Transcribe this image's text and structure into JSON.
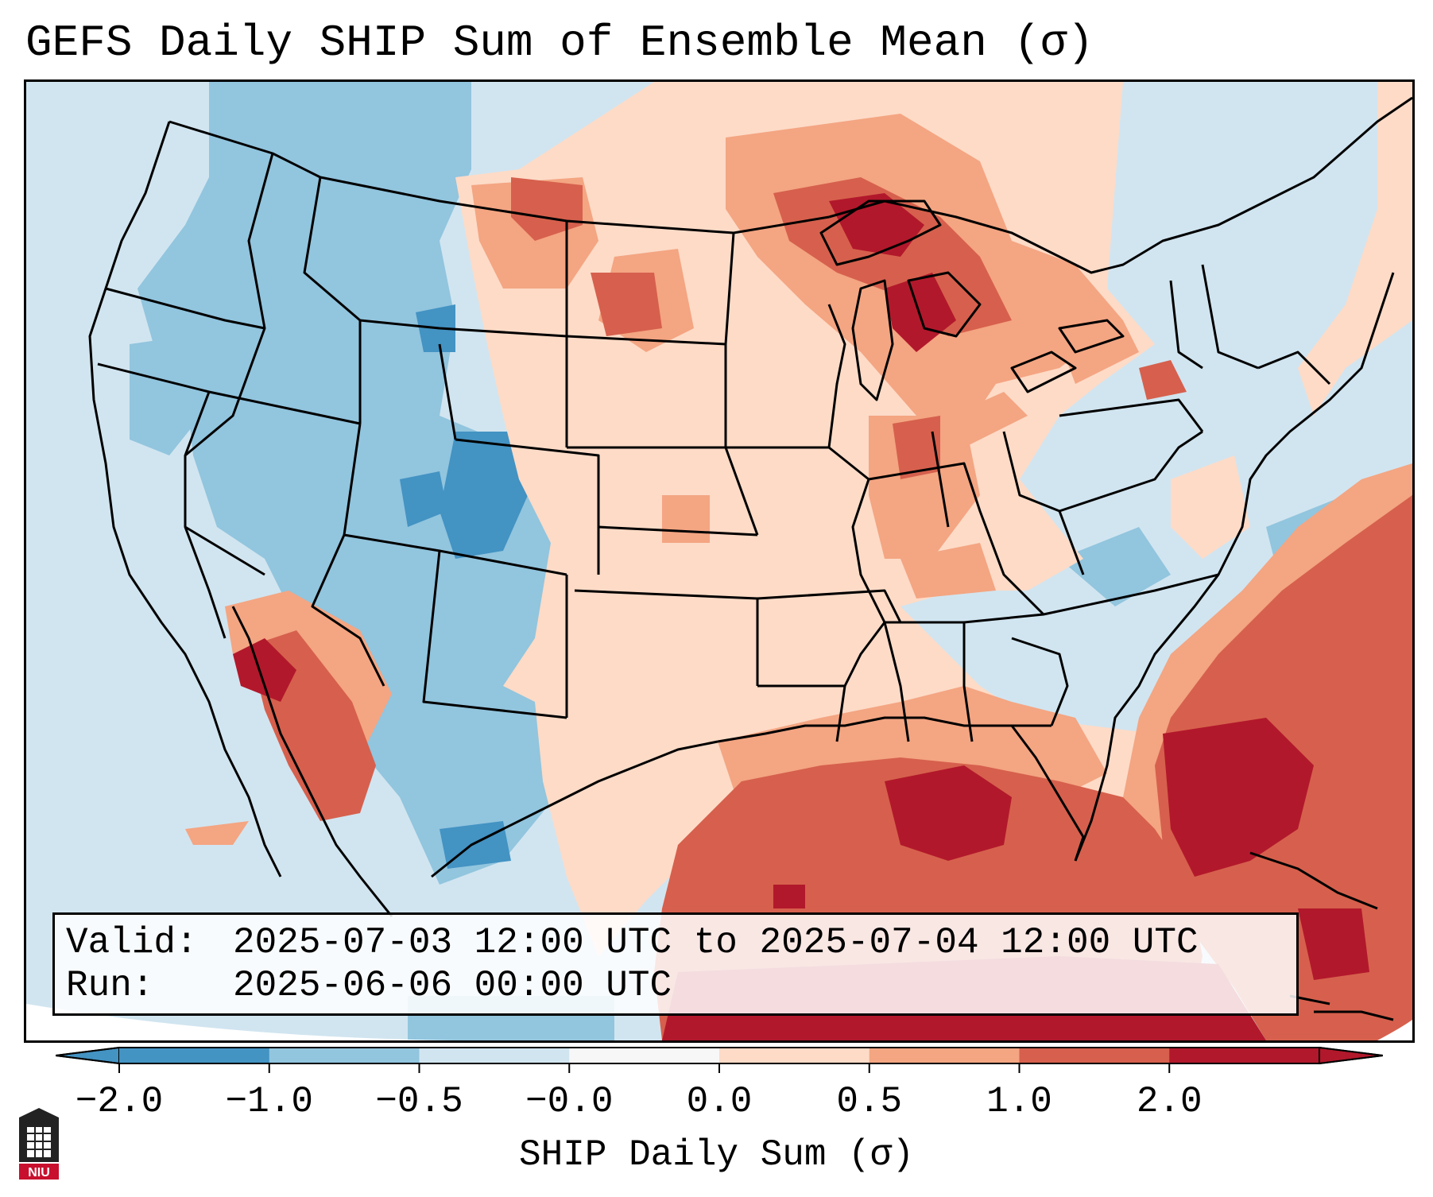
{
  "title": "GEFS Daily SHIP Sum of Ensemble Mean (σ)",
  "info": {
    "valid_label": "Valid:",
    "valid_value": "2025-07-03 12:00 UTC to 2025-07-04 12:00 UTC",
    "run_label": "Run:",
    "run_value": "2025-06-06 00:00 UTC"
  },
  "colorbar": {
    "label": "SHIP Daily Sum (σ)",
    "tick_labels": [
      "−2.0",
      "−1.0",
      "−0.5",
      "−0.0",
      "0.0",
      "0.5",
      "1.0",
      "2.0"
    ],
    "colors": [
      "#4393c3",
      "#92c5de",
      "#d1e5f0",
      "#f7f7f7",
      "#fddbc7",
      "#f4a582",
      "#d6604d",
      "#b2182b"
    ],
    "extend": "both"
  },
  "map": {
    "projection": "Lambert Conformal",
    "region": "Contiguous United States",
    "background_value_color": "#d1e5f0",
    "anomaly_regions": [
      {
        "name": "northern-plains-upper-midwest",
        "level": "positive",
        "color": "#fddbc7"
      },
      {
        "name": "great-lakes",
        "level": "strong-positive",
        "color": "#b2182b"
      },
      {
        "name": "gulf-of-mexico",
        "level": "strong-positive",
        "color": "#d6604d"
      },
      {
        "name": "western-atlantic",
        "level": "strong-positive",
        "color": "#d6604d"
      },
      {
        "name": "desert-southwest",
        "level": "positive",
        "color": "#d6604d"
      },
      {
        "name": "colorado-rockies",
        "level": "negative",
        "color": "#4393c3"
      },
      {
        "name": "intermountain-west",
        "level": "negative",
        "color": "#92c5de"
      },
      {
        "name": "northeast",
        "level": "neutral-negative",
        "color": "#d1e5f0"
      }
    ]
  },
  "logo": {
    "text": "NIU"
  }
}
